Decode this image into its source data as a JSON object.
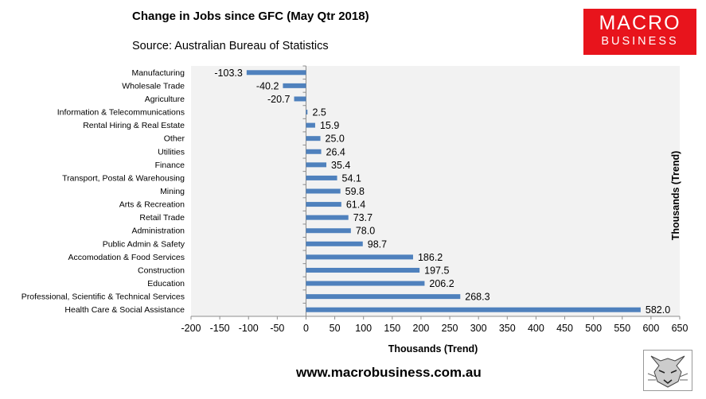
{
  "header": {
    "title": "Change in Jobs since GFC (May Qtr 2018)",
    "source": "Source: Australian Bureau of Statistics"
  },
  "logo": {
    "line1": "MACRO",
    "line2": "BUSINESS",
    "color": "#e8141c",
    "mascot_icon": "wolf-sketch-icon"
  },
  "footer": {
    "website": "www.macrobusiness.com.au"
  },
  "chart_data": {
    "type": "bar",
    "orientation": "horizontal",
    "categories": [
      "Manufacturing",
      "Wholesale Trade",
      "Agriculture",
      "Information & Telecommunications",
      "Rental Hiring & Real Estate",
      "Other",
      "Utilities",
      "Finance",
      "Transport, Postal & Warehousing",
      "Mining",
      "Arts & Recreation",
      "Retail Trade",
      "Administration",
      "Public Admin & Safety",
      "Accomodation & Food Services",
      "Construction",
      "Education",
      "Professional, Scientific & Technical Services",
      "Health Care & Social Assistance"
    ],
    "values": [
      -103.3,
      -40.2,
      -20.7,
      2.5,
      15.9,
      25.0,
      26.4,
      35.4,
      54.1,
      59.8,
      61.4,
      73.7,
      78.0,
      98.7,
      186.2,
      197.5,
      206.2,
      268.3,
      582.0
    ],
    "data_labels": [
      "-103.3",
      "-40.2",
      "-20.7",
      "2.5",
      "15.9",
      "25.0",
      "26.4",
      "35.4",
      "54.1",
      "59.8",
      "61.4",
      "73.7",
      "78.0",
      "98.7",
      "186.2",
      "197.5",
      "206.2",
      "268.3",
      "582.0"
    ],
    "xlabel": "Thousands (Trend)",
    "ylabel_right": "Thousands (Trend)",
    "xlim": [
      -200,
      650
    ],
    "xticks": [
      -200,
      -150,
      -100,
      -50,
      0,
      50,
      100,
      150,
      200,
      250,
      300,
      350,
      400,
      450,
      500,
      550,
      600,
      650
    ],
    "bar_color": "#4f81bd",
    "plot_background": "#f2f2f2",
    "grid": false,
    "legend": "none"
  }
}
